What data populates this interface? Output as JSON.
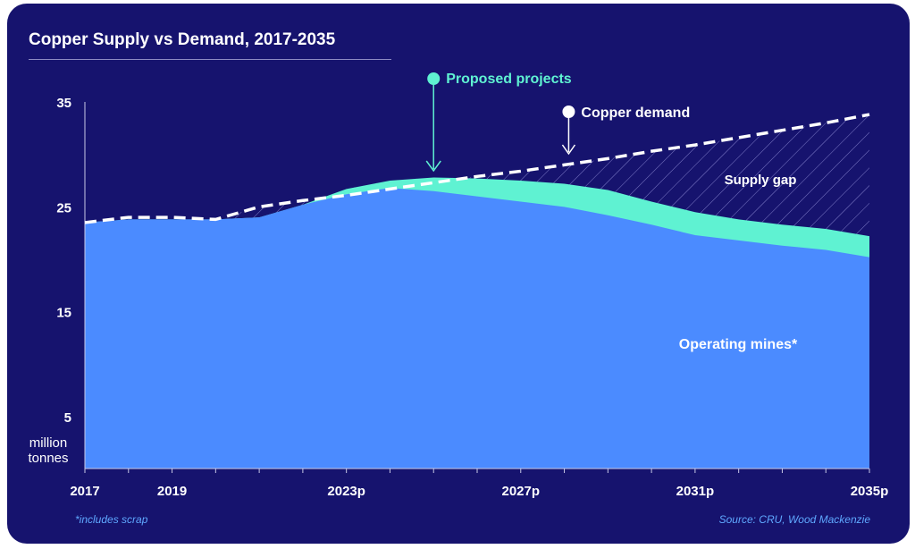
{
  "title": "Copper Supply vs Demand, 2017-2035",
  "footnote": "*includes scrap",
  "source": "Source: CRU, Wood Mackenzie",
  "colors": {
    "background": "#16136e",
    "operating": "#4b8bff",
    "projects": "#5ff2d2",
    "demand": "#ffffff",
    "text": "#ffffff"
  },
  "chart_data": {
    "type": "area",
    "title": "Copper Supply vs Demand, 2017-2035",
    "ylabel": "million tonnes",
    "ylim": [
      0,
      35
    ],
    "yticks": [
      5,
      15,
      25,
      35
    ],
    "xlim": [
      2017,
      2035
    ],
    "xticks": [
      {
        "value": 2017,
        "label": "2017"
      },
      {
        "value": 2019,
        "label": "2019"
      },
      {
        "value": 2023,
        "label": "2023p"
      },
      {
        "value": 2027,
        "label": "2027p"
      },
      {
        "value": 2031,
        "label": "2031p"
      },
      {
        "value": 2035,
        "label": "2035p"
      }
    ],
    "x": [
      2017,
      2018,
      2019,
      2020,
      2021,
      2022,
      2023,
      2024,
      2025,
      2026,
      2027,
      2028,
      2029,
      2030,
      2031,
      2032,
      2033,
      2034,
      2035
    ],
    "series": [
      {
        "name": "Operating mines*",
        "kind": "area",
        "values": [
          23.5,
          23.8,
          23.8,
          23.8,
          24.0,
          25.2,
          26.2,
          26.8,
          26.5,
          26.0,
          25.5,
          25.0,
          24.2,
          23.3,
          22.3,
          21.8,
          21.3,
          20.9,
          20.2
        ]
      },
      {
        "name": "Proposed projects",
        "kind": "area-stacked-top",
        "values": [
          23.5,
          23.8,
          23.8,
          23.8,
          24.0,
          25.2,
          26.7,
          27.5,
          27.8,
          27.7,
          27.5,
          27.2,
          26.6,
          25.5,
          24.5,
          23.8,
          23.3,
          22.9,
          22.2
        ]
      },
      {
        "name": "Copper demand",
        "kind": "dashed-line",
        "values": [
          23.5,
          24.0,
          24.0,
          23.8,
          25.0,
          25.6,
          26.1,
          26.7,
          27.3,
          27.9,
          28.4,
          29.0,
          29.6,
          30.3,
          30.9,
          31.6,
          32.3,
          33.0,
          33.8
        ]
      }
    ],
    "annotations": [
      {
        "label": "Proposed projects",
        "x": 2025,
        "kind": "arrow-down"
      },
      {
        "label": "Copper demand",
        "x": 2028.1,
        "kind": "arrow-down"
      },
      {
        "label": "Supply gap",
        "kind": "region"
      },
      {
        "label": "Operating mines*",
        "kind": "region"
      }
    ],
    "grid": false,
    "legend": "none"
  }
}
